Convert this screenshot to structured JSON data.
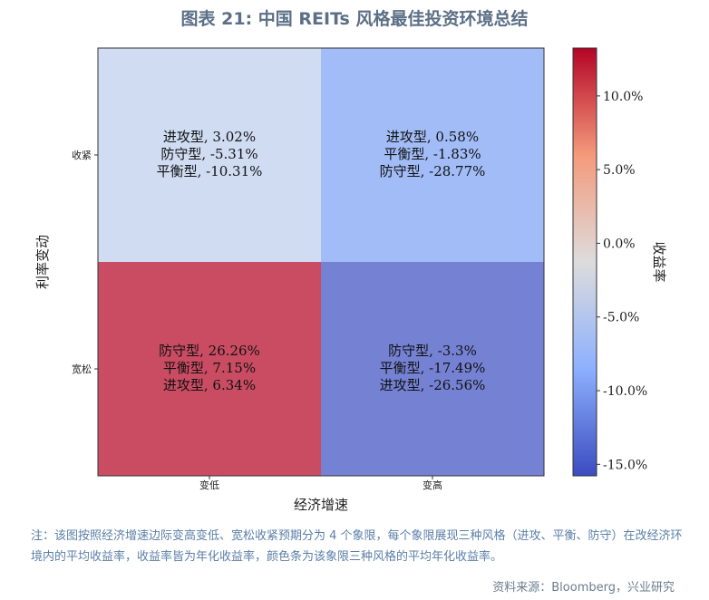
{
  "title": "图表 21: 中国 REITs 风格最佳投资环境总结",
  "chart_data": {
    "type": "heatmap",
    "xlabel": "经济增速",
    "ylabel": "利率变动",
    "x_categories": [
      "变低",
      "变高"
    ],
    "y_categories": [
      "收紧",
      "宽松"
    ],
    "cells": [
      {
        "x": "变低",
        "y": "收紧",
        "mean": -4.2,
        "color": "#cfdcf2",
        "lines": [
          "进攻型, 3.02%",
          "防守型, -5.31%",
          "平衡型, -10.31%"
        ]
      },
      {
        "x": "变高",
        "y": "收紧",
        "mean": -10.0,
        "color": "#a1bcf6",
        "lines": [
          "进攻型, 0.58%",
          "平衡型, -1.83%",
          "防守型, -28.77%"
        ]
      },
      {
        "x": "变低",
        "y": "宽松",
        "mean": 13.25,
        "color": "#c94c63",
        "lines": [
          "防守型, 26.26%",
          "平衡型, 7.15%",
          "进攻型, 6.34%"
        ]
      },
      {
        "x": "变高",
        "y": "宽松",
        "mean": -15.78,
        "color": "#7582d3",
        "lines": [
          "防守型, -3.3%",
          "平衡型, -17.49%",
          "进攻型, -26.56%"
        ]
      }
    ],
    "colorbar": {
      "label": "收益率",
      "range": [
        -15.78,
        13.25
      ],
      "ticks": [
        10,
        5,
        0,
        -5,
        -10,
        -15
      ],
      "tick_labels": [
        "10.0%",
        "5.0%",
        "0.0%",
        "-5.0%",
        "-10.0%",
        "-15.0%"
      ],
      "colormap": "coolwarm"
    }
  },
  "note": "注：该图按照经济增速边际变高变低、宽松收紧预期分为 4 个象限，每个象限展现三种风格（进攻、平衡、防守）在改经济环境内的平均收益率，收益率皆为年化收益率，颜色条为该象限三种风格的平均年化收益率。",
  "source": "资料来源：Bloomberg，兴业研究"
}
